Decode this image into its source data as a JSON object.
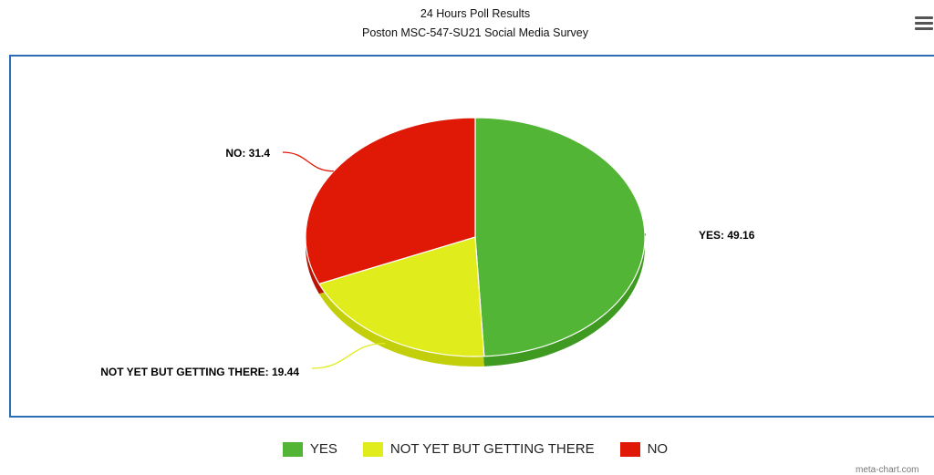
{
  "chart_data": {
    "type": "pie",
    "title": "24 Hours Poll Results",
    "subtitle": "Poston MSC-547-SU21 Social Media Survey",
    "slices": [
      {
        "label": "YES",
        "value": 49.16,
        "color": "#52b535",
        "shade": "#3f9a22",
        "data_label": "YES: 49.16"
      },
      {
        "label": "NOT YET BUT GETTING THERE",
        "value": 19.44,
        "color": "#e0ec1c",
        "shade": "#c4cf0c",
        "data_label": "NOT YET BUT GETTING THERE: 19.44"
      },
      {
        "label": "NO",
        "value": 31.4,
        "color": "#e01806",
        "shade": "#b81404",
        "data_label": "NO: 31.4"
      }
    ],
    "legend_position": "bottom-center"
  },
  "toolbar": {
    "menu_icon": "hamburger-menu-icon"
  },
  "credit": "meta-chart.com"
}
